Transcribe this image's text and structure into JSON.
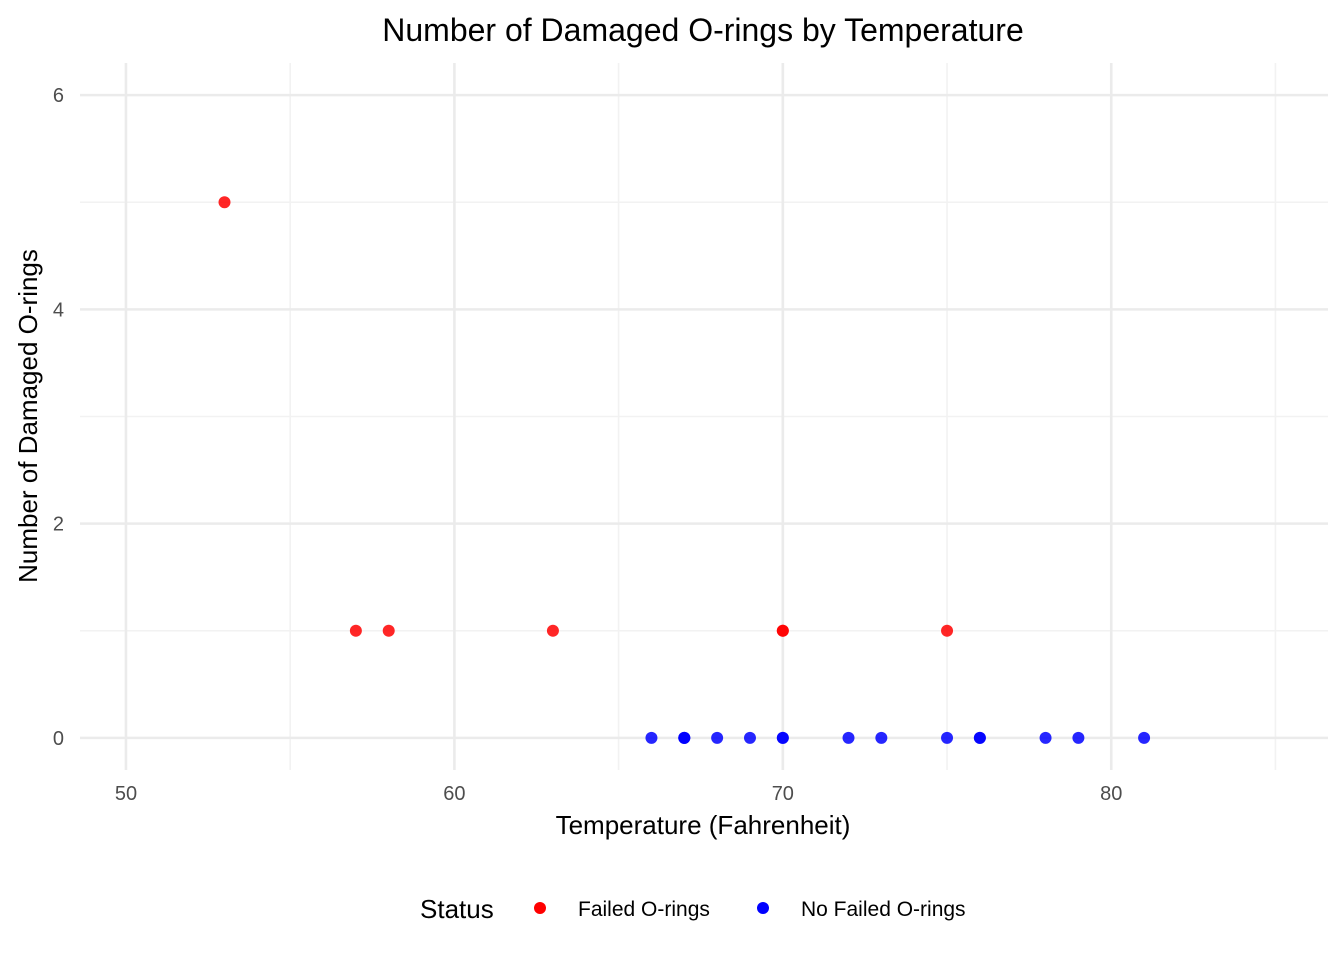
{
  "chart_data": {
    "type": "scatter",
    "title": "Number of Damaged O-rings by Temperature",
    "xlabel": "Temperature (Fahrenheit)",
    "ylabel": "Number of Damaged O-rings",
    "xlim": [
      48.6,
      86.6
    ],
    "ylim": [
      -0.3,
      6.3
    ],
    "x_ticks": [
      50,
      60,
      70,
      80
    ],
    "y_ticks": [
      0,
      2,
      4,
      6
    ],
    "x_minor_ticks": [
      55,
      65,
      75,
      85
    ],
    "y_minor_ticks": [
      1,
      3,
      5
    ],
    "x_tick_labels": [
      "50",
      "60",
      "70",
      "80"
    ],
    "y_tick_labels": [
      "0",
      "2",
      "4",
      "6"
    ],
    "grid": true,
    "legend": {
      "title": "Status",
      "position": "bottom",
      "entries": [
        {
          "label": "Failed O-rings",
          "color": "#ff0000"
        },
        {
          "label": "No Failed O-rings",
          "color": "#0000ff"
        }
      ]
    },
    "series": [
      {
        "name": "Failed O-rings",
        "color": "#ff0000",
        "points": [
          {
            "x": 53,
            "y": 5
          },
          {
            "x": 57,
            "y": 1
          },
          {
            "x": 58,
            "y": 1
          },
          {
            "x": 63,
            "y": 1
          },
          {
            "x": 70,
            "y": 1
          },
          {
            "x": 70,
            "y": 1
          },
          {
            "x": 75,
            "y": 1
          }
        ]
      },
      {
        "name": "No Failed O-rings",
        "color": "#0000ff",
        "points": [
          {
            "x": 66,
            "y": 0
          },
          {
            "x": 67,
            "y": 0
          },
          {
            "x": 67,
            "y": 0
          },
          {
            "x": 67,
            "y": 0
          },
          {
            "x": 68,
            "y": 0
          },
          {
            "x": 69,
            "y": 0
          },
          {
            "x": 70,
            "y": 0
          },
          {
            "x": 70,
            "y": 0
          },
          {
            "x": 72,
            "y": 0
          },
          {
            "x": 73,
            "y": 0
          },
          {
            "x": 75,
            "y": 0
          },
          {
            "x": 76,
            "y": 0
          },
          {
            "x": 76,
            "y": 0
          },
          {
            "x": 78,
            "y": 0
          },
          {
            "x": 79,
            "y": 0
          },
          {
            "x": 81,
            "y": 0
          }
        ]
      }
    ]
  }
}
